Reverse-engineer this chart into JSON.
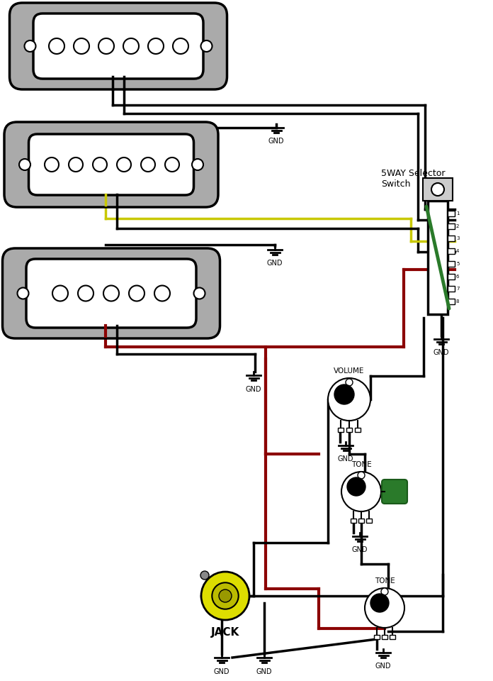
{
  "bg_color": "#ffffff",
  "wire_black": "#000000",
  "wire_red": "#8B0000",
  "wire_yellow": "#c8c800",
  "wire_green": "#2a7a2a",
  "pickup_outer_fill": "#aaaaaa",
  "pickup_inner_fill": "#ffffff",
  "pickup_border": "#000000",
  "switch_label": "5WAY Selector\nSwitch",
  "jack_label": "JACK",
  "volume_label": "VOLUME",
  "tone_label": "TONE",
  "gnd_label": "GND",
  "lw_wire": 2.5,
  "lw_border": 2.5
}
